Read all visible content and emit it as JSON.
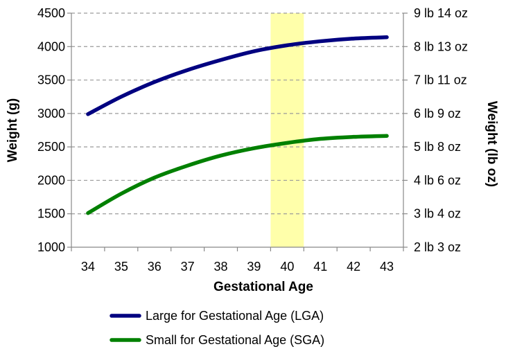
{
  "chart_data": {
    "type": "line",
    "title": "",
    "xlabel": "Gestational Age",
    "ylabel": "Weight (g)",
    "y2label": "Weight (lb oz)",
    "x": [
      34,
      35,
      36,
      37,
      38,
      39,
      40,
      41,
      42,
      43
    ],
    "xlim": [
      33.5,
      43.5
    ],
    "ylim": [
      1000,
      4500
    ],
    "yticks": [
      1000,
      1500,
      2000,
      2500,
      3000,
      3500,
      4000,
      4500
    ],
    "xtick_labels": [
      "34",
      "35",
      "36",
      "37",
      "38",
      "39",
      "40",
      "41",
      "42",
      "43"
    ],
    "ytick_labels": [
      "1000",
      "1500",
      "2000",
      "2500",
      "3000",
      "3500",
      "4000",
      "4500"
    ],
    "y2tick_labels": [
      "2 lb 3 oz",
      "3 lb 4 oz",
      "4 lb 6 oz",
      "5 lb 8 oz",
      "6 lb 9 oz",
      "7 lb 11 oz",
      "8 lb 13 oz",
      "9 lb 14 oz"
    ],
    "highlight_band": {
      "x_from": 39.5,
      "x_to": 40.5,
      "color": "#ffffaa"
    },
    "grid": {
      "horizontal": true,
      "style": "dashed"
    },
    "legend_position": "bottom",
    "series": [
      {
        "name": "Large for Gestational Age (LGA)",
        "color": "#000080",
        "values": [
          2990,
          3250,
          3470,
          3650,
          3800,
          3930,
          4020,
          4080,
          4120,
          4140
        ]
      },
      {
        "name": "Small for Gestational Age (SGA)",
        "color": "#008000",
        "values": [
          1510,
          1800,
          2040,
          2220,
          2370,
          2480,
          2560,
          2620,
          2650,
          2665
        ]
      }
    ]
  }
}
